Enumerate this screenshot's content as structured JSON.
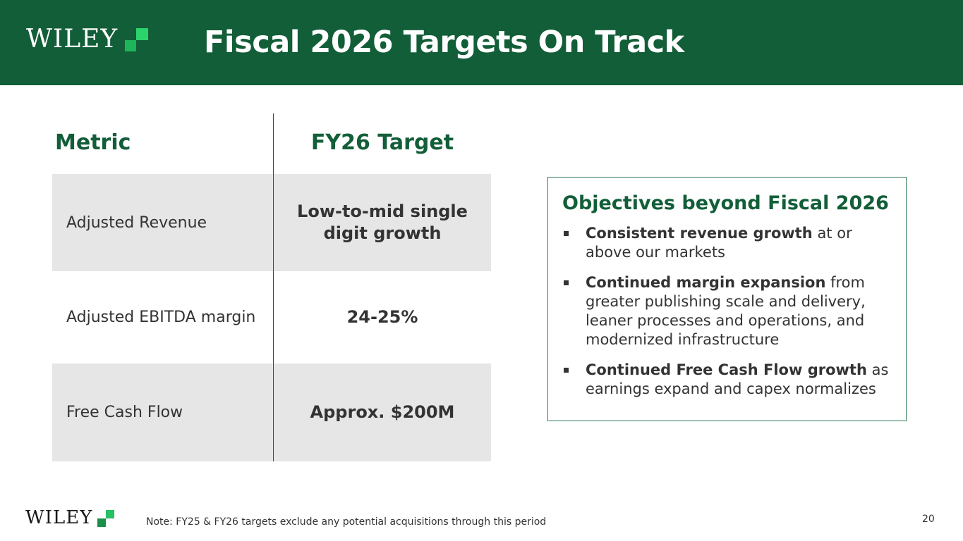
{
  "header": {
    "logo_text": "WILEY",
    "title": "Fiscal 2026 Targets On Track",
    "background": "#125e38"
  },
  "table": {
    "headers": {
      "metric": "Metric",
      "target": "FY26 Target"
    },
    "rows": [
      {
        "metric": "Adjusted Revenue",
        "target": "Low-to-mid single digit growth"
      },
      {
        "metric": "Adjusted EBITDA margin",
        "target": "24-25%"
      },
      {
        "metric": "Free Cash Flow",
        "target": "Approx. $200M"
      }
    ],
    "shade_color": "#e6e6e6"
  },
  "objectives": {
    "title": "Objectives beyond Fiscal 2026",
    "items": [
      {
        "bold": "Consistent revenue growth",
        "rest": " at or above our markets"
      },
      {
        "bold": "Continued margin expansion",
        "rest": " from greater publishing scale and delivery, leaner processes and operations, and modernized infrastructure"
      },
      {
        "bold": "Continued Free Cash Flow growth",
        "rest": " as earnings expand and capex normalizes"
      }
    ]
  },
  "footer": {
    "logo_text": "WILEY",
    "note": "Note: FY25 & FY26 targets exclude any potential acquisitions through this period",
    "page_number": "20"
  },
  "colors": {
    "brand_green": "#125e38",
    "logo_green_light": "#2bd46b",
    "logo_green_dark": "#1fb55a"
  },
  "icons": {
    "logo_mark": "wiley-green-squares-icon"
  }
}
